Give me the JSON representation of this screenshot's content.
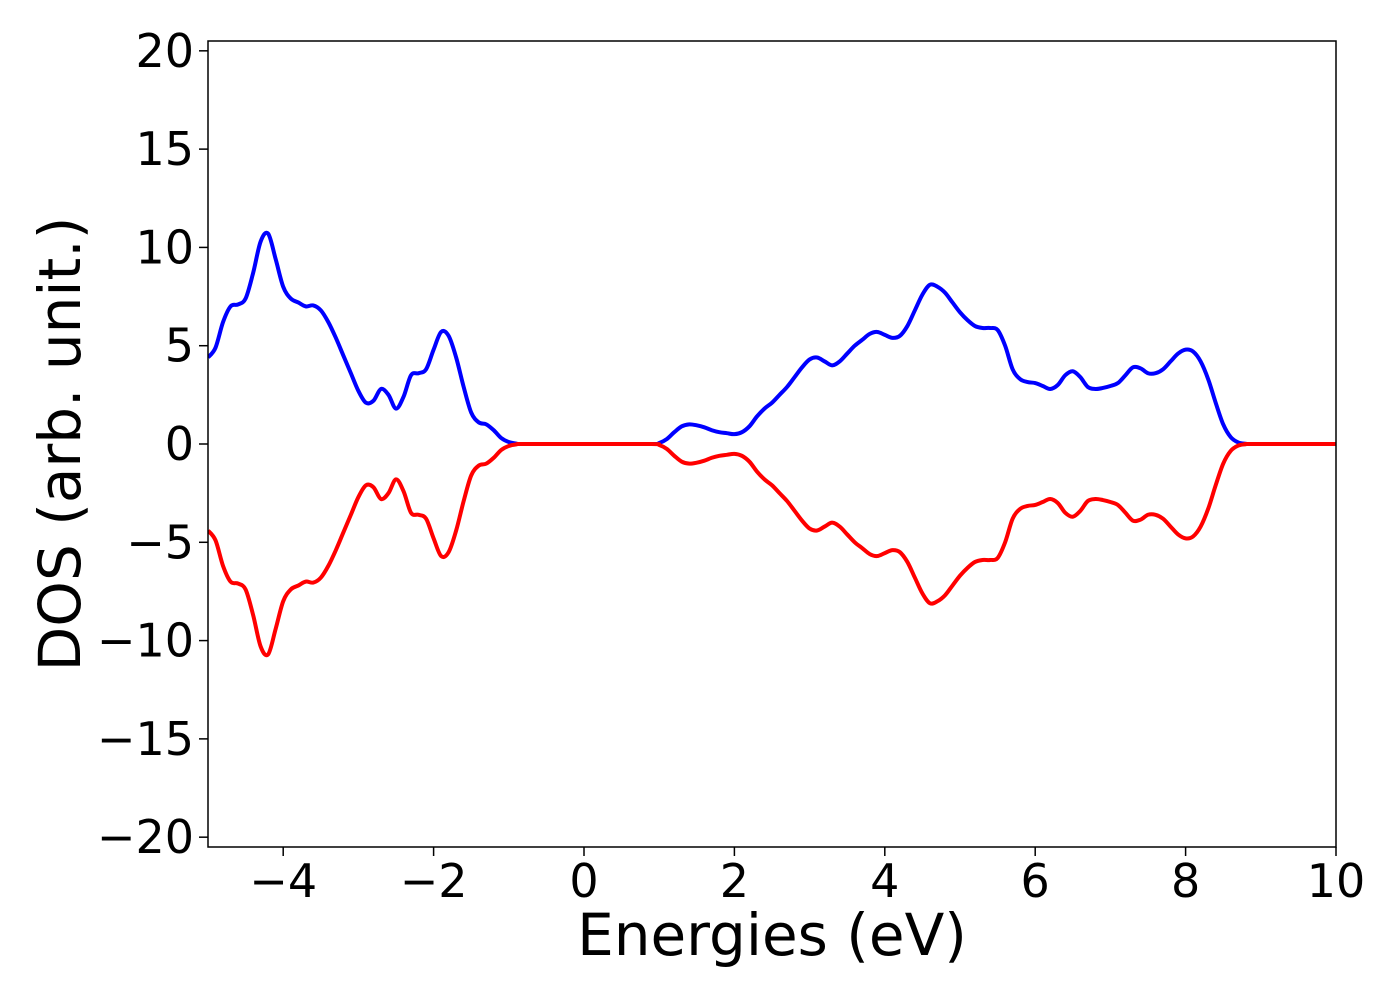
{
  "chart_data": {
    "type": "line",
    "title": "",
    "xlabel": "Energies (eV)",
    "ylabel": "DOS (arb. unit.)",
    "xlim": [
      -5,
      10
    ],
    "ylim": [
      -20.5,
      20.5
    ],
    "xticks": [
      -4,
      -2,
      0,
      2,
      4,
      6,
      8,
      10
    ],
    "xtick_labels": [
      "−4",
      "−2",
      "0",
      "2",
      "4",
      "6",
      "8",
      "10"
    ],
    "yticks": [
      20,
      15,
      10,
      5,
      0,
      -5,
      -10,
      -15,
      -20
    ],
    "ytick_labels": [
      "20",
      "15",
      "10",
      "5",
      "0",
      "−5",
      "−10",
      "−15",
      "−20"
    ],
    "grid": false,
    "legend": "none",
    "series": [
      {
        "color": "#0000ff",
        "points": [
          [
            -5.0,
            4.4
          ],
          [
            -4.9,
            4.9
          ],
          [
            -4.8,
            6.2
          ],
          [
            -4.7,
            7.0
          ],
          [
            -4.6,
            7.1
          ],
          [
            -4.5,
            7.4
          ],
          [
            -4.4,
            8.7
          ],
          [
            -4.3,
            10.3
          ],
          [
            -4.2,
            10.7
          ],
          [
            -4.1,
            9.4
          ],
          [
            -4.0,
            8.0
          ],
          [
            -3.9,
            7.4
          ],
          [
            -3.8,
            7.2
          ],
          [
            -3.7,
            7.0
          ],
          [
            -3.6,
            7.05
          ],
          [
            -3.5,
            6.8
          ],
          [
            -3.4,
            6.2
          ],
          [
            -3.3,
            5.4
          ],
          [
            -3.2,
            4.5
          ],
          [
            -3.1,
            3.6
          ],
          [
            -3.0,
            2.7
          ],
          [
            -2.9,
            2.1
          ],
          [
            -2.8,
            2.2
          ],
          [
            -2.7,
            2.8
          ],
          [
            -2.6,
            2.5
          ],
          [
            -2.5,
            1.8
          ],
          [
            -2.4,
            2.4
          ],
          [
            -2.3,
            3.5
          ],
          [
            -2.2,
            3.6
          ],
          [
            -2.1,
            3.8
          ],
          [
            -2.0,
            4.8
          ],
          [
            -1.9,
            5.7
          ],
          [
            -1.8,
            5.5
          ],
          [
            -1.7,
            4.4
          ],
          [
            -1.6,
            2.9
          ],
          [
            -1.5,
            1.6
          ],
          [
            -1.4,
            1.1
          ],
          [
            -1.3,
            1.0
          ],
          [
            -1.2,
            0.7
          ],
          [
            -1.1,
            0.3
          ],
          [
            -1.0,
            0.1
          ],
          [
            -0.9,
            0.02
          ],
          [
            -0.8,
            0.0
          ],
          [
            0.0,
            0.0
          ],
          [
            0.9,
            0.0
          ],
          [
            1.0,
            0.05
          ],
          [
            1.1,
            0.25
          ],
          [
            1.2,
            0.6
          ],
          [
            1.3,
            0.9
          ],
          [
            1.4,
            1.0
          ],
          [
            1.5,
            0.95
          ],
          [
            1.6,
            0.85
          ],
          [
            1.7,
            0.7
          ],
          [
            1.8,
            0.6
          ],
          [
            1.9,
            0.55
          ],
          [
            2.0,
            0.5
          ],
          [
            2.1,
            0.6
          ],
          [
            2.2,
            0.9
          ],
          [
            2.3,
            1.4
          ],
          [
            2.4,
            1.8
          ],
          [
            2.5,
            2.1
          ],
          [
            2.6,
            2.5
          ],
          [
            2.7,
            2.9
          ],
          [
            2.8,
            3.4
          ],
          [
            2.9,
            3.9
          ],
          [
            3.0,
            4.3
          ],
          [
            3.1,
            4.4
          ],
          [
            3.2,
            4.2
          ],
          [
            3.3,
            4.0
          ],
          [
            3.4,
            4.2
          ],
          [
            3.5,
            4.6
          ],
          [
            3.6,
            5.0
          ],
          [
            3.7,
            5.3
          ],
          [
            3.8,
            5.6
          ],
          [
            3.9,
            5.7
          ],
          [
            4.0,
            5.55
          ],
          [
            4.1,
            5.4
          ],
          [
            4.2,
            5.5
          ],
          [
            4.3,
            6.0
          ],
          [
            4.4,
            6.8
          ],
          [
            4.5,
            7.6
          ],
          [
            4.6,
            8.1
          ],
          [
            4.7,
            8.0
          ],
          [
            4.8,
            7.7
          ],
          [
            4.9,
            7.2
          ],
          [
            5.0,
            6.7
          ],
          [
            5.1,
            6.3
          ],
          [
            5.2,
            6.0
          ],
          [
            5.3,
            5.9
          ],
          [
            5.4,
            5.9
          ],
          [
            5.5,
            5.8
          ],
          [
            5.6,
            5.0
          ],
          [
            5.7,
            3.8
          ],
          [
            5.8,
            3.3
          ],
          [
            5.9,
            3.15
          ],
          [
            6.0,
            3.1
          ],
          [
            6.1,
            2.95
          ],
          [
            6.2,
            2.8
          ],
          [
            6.3,
            3.0
          ],
          [
            6.4,
            3.5
          ],
          [
            6.5,
            3.7
          ],
          [
            6.6,
            3.4
          ],
          [
            6.7,
            2.9
          ],
          [
            6.8,
            2.8
          ],
          [
            6.9,
            2.85
          ],
          [
            7.0,
            2.95
          ],
          [
            7.1,
            3.1
          ],
          [
            7.2,
            3.5
          ],
          [
            7.3,
            3.9
          ],
          [
            7.4,
            3.85
          ],
          [
            7.5,
            3.6
          ],
          [
            7.6,
            3.6
          ],
          [
            7.7,
            3.8
          ],
          [
            7.8,
            4.2
          ],
          [
            7.9,
            4.6
          ],
          [
            8.0,
            4.8
          ],
          [
            8.1,
            4.7
          ],
          [
            8.2,
            4.2
          ],
          [
            8.3,
            3.3
          ],
          [
            8.4,
            2.1
          ],
          [
            8.5,
            1.0
          ],
          [
            8.6,
            0.35
          ],
          [
            8.7,
            0.08
          ],
          [
            8.8,
            0.01
          ],
          [
            8.9,
            0.0
          ],
          [
            10.0,
            0.0
          ]
        ]
      },
      {
        "color": "#ff0000",
        "points": [
          [
            -5.0,
            -4.4
          ],
          [
            -4.9,
            -4.9
          ],
          [
            -4.8,
            -6.2
          ],
          [
            -4.7,
            -7.0
          ],
          [
            -4.6,
            -7.1
          ],
          [
            -4.5,
            -7.4
          ],
          [
            -4.4,
            -8.7
          ],
          [
            -4.3,
            -10.3
          ],
          [
            -4.2,
            -10.7
          ],
          [
            -4.1,
            -9.4
          ],
          [
            -4.0,
            -8.0
          ],
          [
            -3.9,
            -7.4
          ],
          [
            -3.8,
            -7.2
          ],
          [
            -3.7,
            -7.0
          ],
          [
            -3.6,
            -7.05
          ],
          [
            -3.5,
            -6.8
          ],
          [
            -3.4,
            -6.2
          ],
          [
            -3.3,
            -5.4
          ],
          [
            -3.2,
            -4.5
          ],
          [
            -3.1,
            -3.6
          ],
          [
            -3.0,
            -2.7
          ],
          [
            -2.9,
            -2.1
          ],
          [
            -2.8,
            -2.2
          ],
          [
            -2.7,
            -2.8
          ],
          [
            -2.6,
            -2.5
          ],
          [
            -2.5,
            -1.8
          ],
          [
            -2.4,
            -2.4
          ],
          [
            -2.3,
            -3.5
          ],
          [
            -2.2,
            -3.6
          ],
          [
            -2.1,
            -3.8
          ],
          [
            -2.0,
            -4.8
          ],
          [
            -1.9,
            -5.7
          ],
          [
            -1.8,
            -5.5
          ],
          [
            -1.7,
            -4.4
          ],
          [
            -1.6,
            -2.9
          ],
          [
            -1.5,
            -1.6
          ],
          [
            -1.4,
            -1.1
          ],
          [
            -1.3,
            -1.0
          ],
          [
            -1.2,
            -0.7
          ],
          [
            -1.1,
            -0.3
          ],
          [
            -1.0,
            -0.1
          ],
          [
            -0.9,
            -0.02
          ],
          [
            -0.8,
            0.0
          ],
          [
            0.0,
            0.0
          ],
          [
            0.9,
            0.0
          ],
          [
            1.0,
            -0.05
          ],
          [
            1.1,
            -0.25
          ],
          [
            1.2,
            -0.6
          ],
          [
            1.3,
            -0.9
          ],
          [
            1.4,
            -1.0
          ],
          [
            1.5,
            -0.95
          ],
          [
            1.6,
            -0.85
          ],
          [
            1.7,
            -0.7
          ],
          [
            1.8,
            -0.6
          ],
          [
            1.9,
            -0.55
          ],
          [
            2.0,
            -0.5
          ],
          [
            2.1,
            -0.6
          ],
          [
            2.2,
            -0.9
          ],
          [
            2.3,
            -1.4
          ],
          [
            2.4,
            -1.8
          ],
          [
            2.5,
            -2.1
          ],
          [
            2.6,
            -2.5
          ],
          [
            2.7,
            -2.9
          ],
          [
            2.8,
            -3.4
          ],
          [
            2.9,
            -3.9
          ],
          [
            3.0,
            -4.3
          ],
          [
            3.1,
            -4.4
          ],
          [
            3.2,
            -4.2
          ],
          [
            3.3,
            -4.0
          ],
          [
            3.4,
            -4.2
          ],
          [
            3.5,
            -4.6
          ],
          [
            3.6,
            -5.0
          ],
          [
            3.7,
            -5.3
          ],
          [
            3.8,
            -5.6
          ],
          [
            3.9,
            -5.7
          ],
          [
            4.0,
            -5.55
          ],
          [
            4.1,
            -5.4
          ],
          [
            4.2,
            -5.5
          ],
          [
            4.3,
            -6.0
          ],
          [
            4.4,
            -6.8
          ],
          [
            4.5,
            -7.6
          ],
          [
            4.6,
            -8.1
          ],
          [
            4.7,
            -8.0
          ],
          [
            4.8,
            -7.7
          ],
          [
            4.9,
            -7.2
          ],
          [
            5.0,
            -6.7
          ],
          [
            5.1,
            -6.3
          ],
          [
            5.2,
            -6.0
          ],
          [
            5.3,
            -5.9
          ],
          [
            5.4,
            -5.9
          ],
          [
            5.5,
            -5.8
          ],
          [
            5.6,
            -5.0
          ],
          [
            5.7,
            -3.8
          ],
          [
            5.8,
            -3.3
          ],
          [
            5.9,
            -3.15
          ],
          [
            6.0,
            -3.1
          ],
          [
            6.1,
            -2.95
          ],
          [
            6.2,
            -2.8
          ],
          [
            6.3,
            -3.0
          ],
          [
            6.4,
            -3.5
          ],
          [
            6.5,
            -3.7
          ],
          [
            6.6,
            -3.4
          ],
          [
            6.7,
            -2.9
          ],
          [
            6.8,
            -2.8
          ],
          [
            6.9,
            -2.85
          ],
          [
            7.0,
            -2.95
          ],
          [
            7.1,
            -3.1
          ],
          [
            7.2,
            -3.5
          ],
          [
            7.3,
            -3.9
          ],
          [
            7.4,
            -3.85
          ],
          [
            7.5,
            -3.6
          ],
          [
            7.6,
            -3.6
          ],
          [
            7.7,
            -3.8
          ],
          [
            7.8,
            -4.2
          ],
          [
            7.9,
            -4.6
          ],
          [
            8.0,
            -4.8
          ],
          [
            8.1,
            -4.7
          ],
          [
            8.2,
            -4.2
          ],
          [
            8.3,
            -3.3
          ],
          [
            8.4,
            -2.1
          ],
          [
            8.5,
            -1.0
          ],
          [
            8.6,
            -0.35
          ],
          [
            8.7,
            -0.08
          ],
          [
            8.8,
            -0.01
          ],
          [
            8.9,
            0.0
          ],
          [
            10.0,
            0.0
          ]
        ]
      }
    ]
  }
}
